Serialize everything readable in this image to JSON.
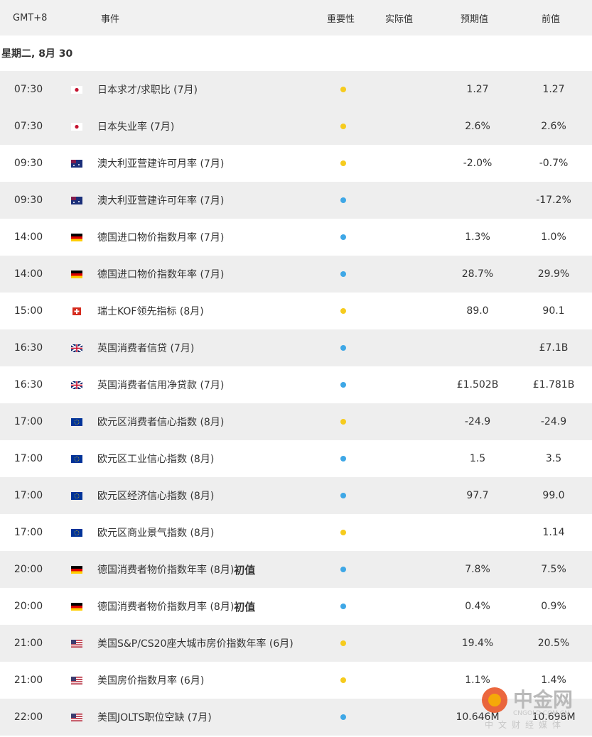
{
  "header": {
    "columns": [
      "GMT+8",
      "事件",
      "重要性",
      "实际值",
      "预期值",
      "前值"
    ]
  },
  "date": "星期二, 8月 30",
  "colors": {
    "yellow": "#f6cb1d",
    "blue": "#3ea7e6"
  },
  "rows": [
    {
      "time": "07:30",
      "flag": "jp",
      "event": "日本求才/求职比 (7月)",
      "dot": "yellow",
      "forecast": "1.27",
      "previous": "1.27"
    },
    {
      "time": "07:30",
      "flag": "jp",
      "event": "日本失业率 (7月)",
      "dot": "yellow",
      "forecast": "2.6%",
      "previous": "2.6%"
    },
    {
      "time": "09:30",
      "flag": "au",
      "event": "澳大利亚营建许可月率 (7月)",
      "dot": "yellow",
      "forecast": "-2.0%",
      "previous": "-0.7%"
    },
    {
      "time": "09:30",
      "flag": "au",
      "event": "澳大利亚营建许可年率 (7月)",
      "dot": "blue",
      "forecast": null,
      "previous": "-17.2%"
    },
    {
      "time": "14:00",
      "flag": "de",
      "event": "德国进口物价指数月率 (7月)",
      "dot": "blue",
      "forecast": "1.3%",
      "previous": "1.0%"
    },
    {
      "time": "14:00",
      "flag": "de",
      "event": "德国进口物价指数年率 (7月)",
      "dot": "blue",
      "forecast": "28.7%",
      "previous": "29.9%"
    },
    {
      "time": "15:00",
      "flag": "ch",
      "event": "瑞士KOF领先指标 (8月)",
      "dot": "yellow",
      "forecast": "89.0",
      "previous": "90.1"
    },
    {
      "time": "16:30",
      "flag": "gb",
      "event": "英国消费者信贷 (7月)",
      "dot": "blue",
      "forecast": null,
      "previous": "£7.1B"
    },
    {
      "time": "16:30",
      "flag": "gb",
      "event": "英国消费者信用净贷款 (7月)",
      "dot": "blue",
      "forecast": "£1.502B",
      "previous": "£1.781B"
    },
    {
      "time": "17:00",
      "flag": "eu",
      "event": "欧元区消费者信心指数 (8月)",
      "dot": "yellow",
      "forecast": "-24.9",
      "previous": "-24.9"
    },
    {
      "time": "17:00",
      "flag": "eu",
      "event": "欧元区工业信心指数 (8月)",
      "dot": "blue",
      "forecast": "1.5",
      "previous": "3.5"
    },
    {
      "time": "17:00",
      "flag": "eu",
      "event": "欧元区经济信心指数 (8月)",
      "dot": "blue",
      "forecast": "97.7",
      "previous": "99.0"
    },
    {
      "time": "17:00",
      "flag": "eu",
      "event": "欧元区商业景气指数 (8月)",
      "dot": "yellow",
      "forecast": null,
      "previous": "1.14"
    },
    {
      "time": "20:00",
      "flag": "de",
      "event": "德国消费者物价指数年率 (8月)",
      "tag": "初值",
      "dot": "blue",
      "forecast": "7.8%",
      "previous": "7.5%"
    },
    {
      "time": "20:00",
      "flag": "de",
      "event": "德国消费者物价指数月率 (8月)",
      "tag": "初值",
      "dot": "blue",
      "forecast": "0.4%",
      "previous": "0.9%"
    },
    {
      "time": "21:00",
      "flag": "us",
      "event": "美国S&P/CS20座大城市房价指数年率 (6月)",
      "dot": "yellow",
      "forecast": "19.4%",
      "previous": "20.5%"
    },
    {
      "time": "21:00",
      "flag": "us",
      "event": "美国房价指数月率 (6月)",
      "dot": "yellow",
      "forecast": "1.1%",
      "previous": "1.4%"
    },
    {
      "time": "22:00",
      "flag": "us",
      "event": "美国JOLTS职位空缺 (7月)",
      "dot": "blue",
      "forecast": "10.646M",
      "previous": "10.698M"
    }
  ],
  "watermark": {
    "name": "中金网",
    "site": "CNGOLD.COM.CN",
    "slogan": "中文财经媒体"
  }
}
